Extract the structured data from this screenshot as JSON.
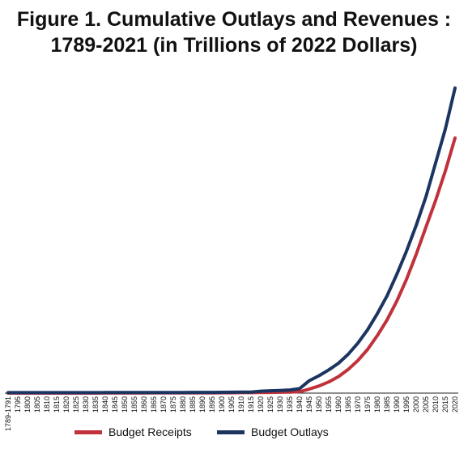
{
  "chart_data": {
    "type": "line",
    "title_line1": "Figure 1. Cumulative Outlays and Revenues :",
    "title_line2": "1789-2021 (in Trillions of 2022 Dollars)",
    "xlabel": "",
    "ylabel": "",
    "grid": false,
    "legend_position": "bottom",
    "categories": [
      "1789-1791",
      "1795",
      "1800",
      "1805",
      "1810",
      "1815",
      "1820",
      "1825",
      "1830",
      "1835",
      "1840",
      "1845",
      "1850",
      "1855",
      "1860",
      "1865",
      "1870",
      "1875",
      "1880",
      "1885",
      "1890",
      "1895",
      "1900",
      "1905",
      "1910",
      "1915",
      "1920",
      "1925",
      "1930",
      "1935",
      "1940",
      "1945",
      "1950",
      "1955",
      "1960",
      "1965",
      "1970",
      "1975",
      "1980",
      "1985",
      "1990",
      "1995",
      "2000",
      "2005",
      "2010",
      "2015",
      "2020"
    ],
    "series": [
      {
        "name": "Budget Receipts",
        "color": "#c0313b",
        "values": [
          0,
          0,
          0,
          0,
          0,
          0,
          0,
          0,
          0,
          0,
          0.01,
          0.01,
          0.01,
          0.01,
          0.01,
          0.02,
          0.02,
          0.02,
          0.02,
          0.03,
          0.03,
          0.03,
          0.04,
          0.04,
          0.05,
          0.05,
          0.07,
          0.08,
          0.1,
          0.12,
          0.15,
          0.45,
          0.8,
          1.25,
          1.85,
          2.65,
          3.65,
          4.9,
          6.45,
          8.2,
          10.3,
          12.75,
          15.55,
          18.6,
          21.6,
          24.9,
          28.6
        ]
      },
      {
        "name": "Budget Outlays",
        "color": "#1c3560",
        "values": [
          0.05,
          0.05,
          0.05,
          0.05,
          0.05,
          0.05,
          0.05,
          0.05,
          0.05,
          0.05,
          0.06,
          0.06,
          0.06,
          0.06,
          0.06,
          0.07,
          0.07,
          0.07,
          0.07,
          0.08,
          0.08,
          0.08,
          0.09,
          0.1,
          0.11,
          0.12,
          0.22,
          0.26,
          0.3,
          0.35,
          0.5,
          1.4,
          1.95,
          2.6,
          3.35,
          4.35,
          5.6,
          7.1,
          8.9,
          10.9,
          13.3,
          15.9,
          18.8,
          22.0,
          25.8,
          29.6,
          34.2
        ]
      }
    ],
    "ylim": [
      0,
      35
    ]
  }
}
